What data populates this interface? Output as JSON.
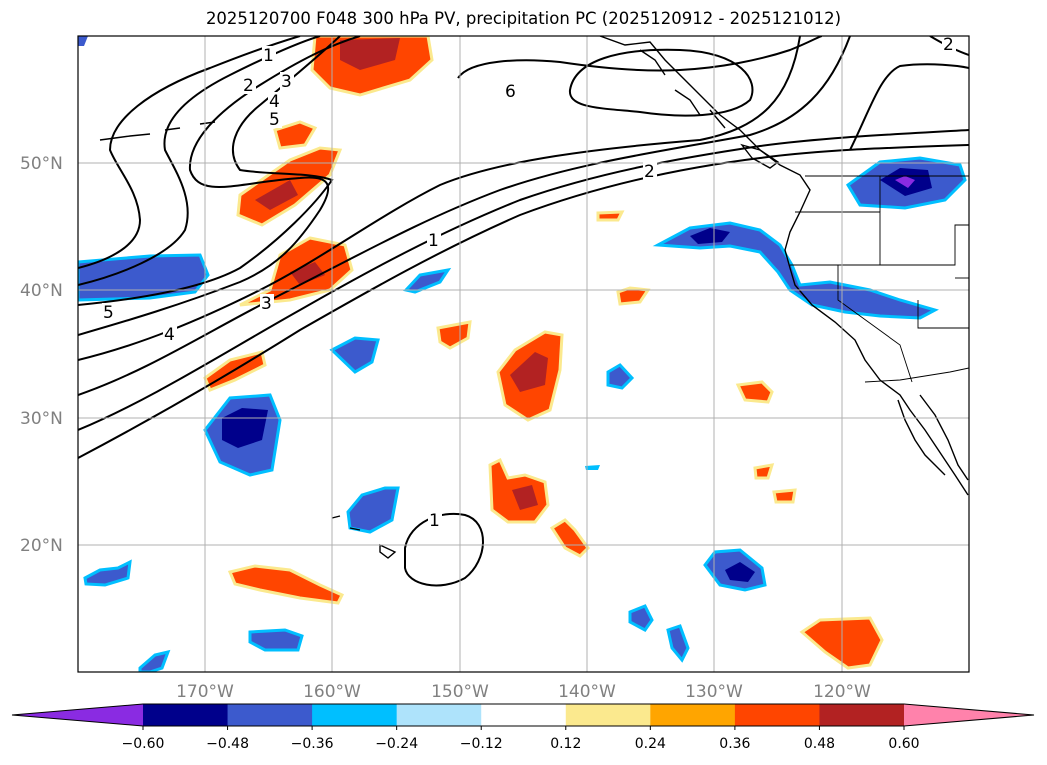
{
  "title": "2025120700 F048 300 hPa PV, precipitation PC (2025120912 - 2025121012)",
  "map": {
    "lat_labels": [
      "50°N",
      "40°N",
      "30°N",
      "20°N"
    ],
    "lon_labels": [
      "170°W",
      "160°W",
      "150°W",
      "140°W",
      "130°W",
      "120°W"
    ],
    "contour_labels": [
      "1",
      "2",
      "3",
      "4",
      "5",
      "6",
      "2",
      "1",
      "2",
      "3",
      "4",
      "5",
      "1"
    ]
  },
  "colorbar": {
    "colors": [
      "#8a2be2",
      "#00008b",
      "#3c5acd",
      "#00bfff",
      "#aee3fb",
      "#ffffff",
      "#fbe98e",
      "#ffa500",
      "#ff4500",
      "#b22222",
      "#ff82ab"
    ],
    "tick_labels": [
      "−0.60",
      "−0.48",
      "−0.36",
      "−0.24",
      "−0.12",
      "0.12",
      "0.24",
      "0.36",
      "0.48",
      "0.60"
    ]
  }
}
